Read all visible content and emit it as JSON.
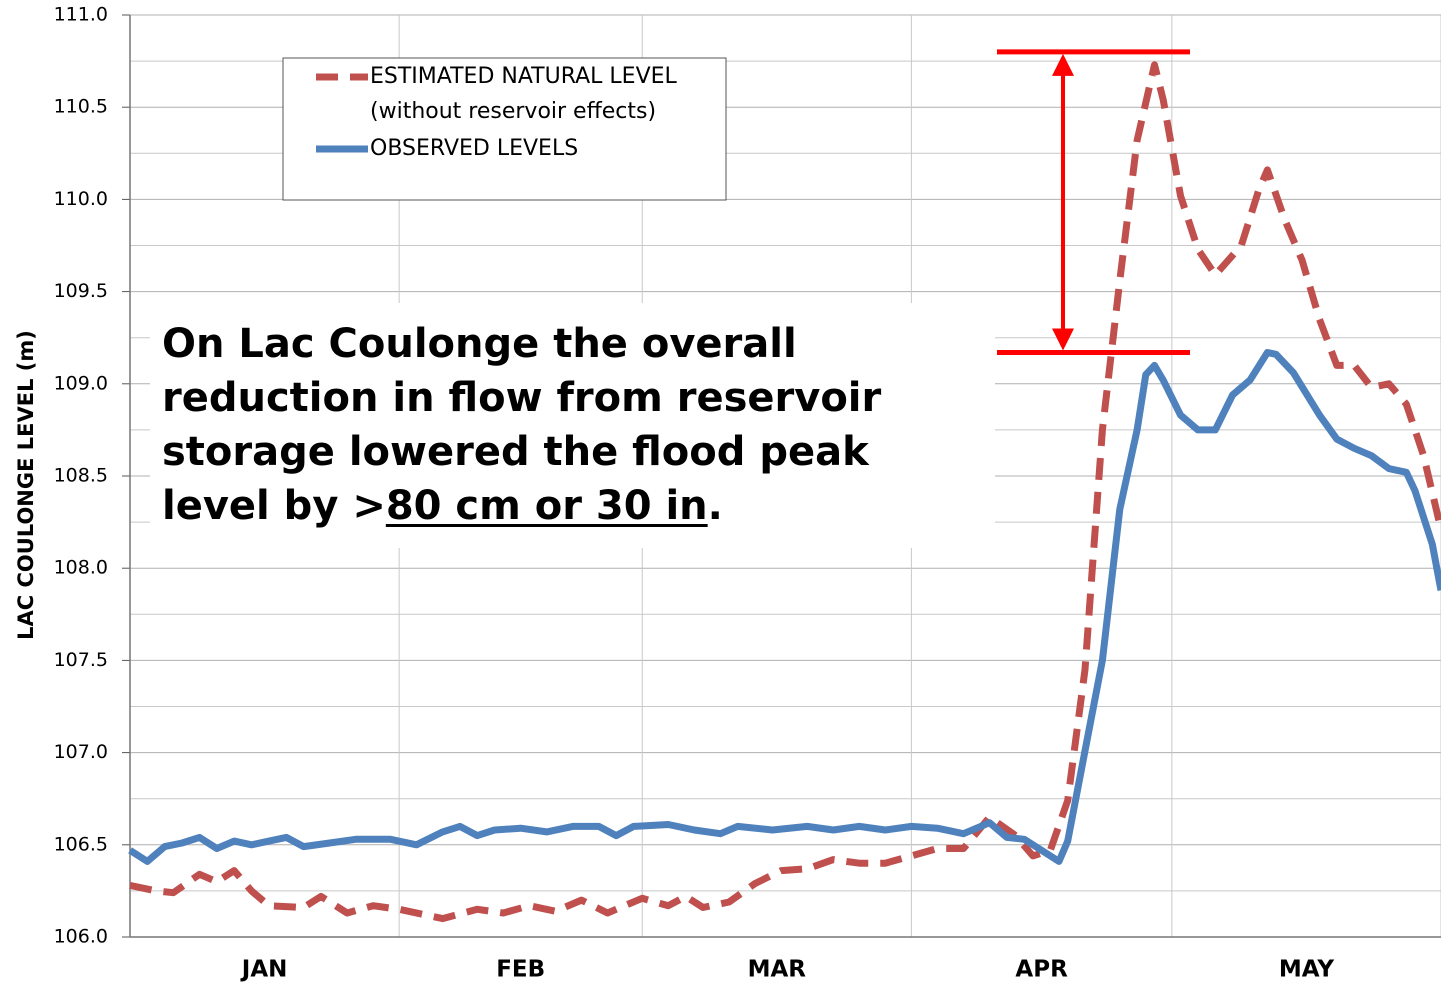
{
  "chart_data": {
    "type": "line",
    "ylabel": "LAC COULONGE LEVEL (m)",
    "ylim": [
      106,
      111
    ],
    "yticks": [
      {
        "value": 106,
        "label": "106.0"
      },
      106.5,
      {
        "value": 107,
        "label": "107.0"
      },
      107.5,
      {
        "value": 108,
        "label": "108.0"
      },
      108.5,
      {
        "value": 109,
        "label": "109.0"
      },
      109.5,
      {
        "value": 110,
        "label": "110.0"
      },
      110.5,
      {
        "value": 111,
        "label": "111.0"
      }
    ],
    "ygrid_minor": [
      106.25,
      106.75,
      107.25,
      107.75,
      108.25,
      108.75,
      109.25,
      109.75,
      110.25,
      110.75
    ],
    "xlim": [
      0,
      151
    ],
    "xgrid": [
      0,
      31,
      59,
      90,
      120,
      151
    ],
    "categories": [
      "JAN",
      "FEB",
      "MAR",
      "APR",
      "MAY"
    ],
    "grid": true,
    "series": [
      {
        "name": "ESTIMATED NATURAL LEVEL",
        "legend_note": "(without reservoir effects)",
        "color": "#c0504d",
        "dashed": true,
        "x": [
          0,
          3,
          5,
          8,
          10,
          12,
          14,
          16,
          20,
          22,
          25,
          28,
          31,
          36,
          40,
          43,
          46,
          49,
          52,
          55,
          59,
          62,
          64,
          66,
          69,
          72,
          75,
          78,
          81,
          84,
          87,
          90,
          93,
          96,
          99,
          102,
          104,
          106,
          108,
          110,
          112,
          114,
          116,
          118,
          119,
          121,
          123,
          125,
          128,
          130,
          131,
          133,
          135,
          137,
          139,
          141,
          143,
          145,
          147,
          149,
          151
        ],
        "values": [
          106.28,
          106.25,
          106.24,
          106.34,
          106.3,
          106.36,
          106.25,
          106.17,
          106.16,
          106.22,
          106.13,
          106.17,
          106.15,
          106.1,
          106.15,
          106.13,
          106.17,
          106.14,
          106.2,
          106.13,
          106.21,
          106.17,
          106.22,
          106.16,
          106.19,
          106.29,
          106.36,
          106.37,
          106.42,
          106.4,
          106.4,
          106.44,
          106.48,
          106.48,
          106.65,
          106.55,
          106.44,
          106.47,
          106.74,
          107.45,
          108.75,
          109.56,
          110.32,
          110.73,
          110.54,
          110.02,
          109.73,
          109.59,
          109.75,
          110.05,
          110.16,
          109.89,
          109.67,
          109.35,
          109.1,
          109.1,
          108.98,
          109.0,
          108.89,
          108.61,
          108.21
        ]
      },
      {
        "name": "OBSERVED LEVELS",
        "color": "#4f81bd",
        "dashed": false,
        "x": [
          0,
          2,
          4,
          6,
          8,
          10,
          12,
          14,
          16,
          18,
          20,
          23,
          26,
          30,
          33,
          36,
          38,
          40,
          42,
          45,
          48,
          51,
          54,
          56,
          58,
          62,
          65,
          68,
          70,
          74,
          78,
          81,
          84,
          87,
          90,
          93,
          96,
          99,
          101,
          103,
          105,
          107,
          108,
          110,
          112,
          114,
          116,
          117,
          118,
          119,
          121,
          123,
          125,
          127,
          129,
          131,
          132,
          134,
          137,
          139,
          141,
          143,
          145,
          147,
          148,
          150,
          151
        ],
        "values": [
          106.47,
          106.41,
          106.49,
          106.51,
          106.54,
          106.48,
          106.52,
          106.5,
          106.52,
          106.54,
          106.49,
          106.51,
          106.53,
          106.53,
          106.5,
          106.57,
          106.6,
          106.55,
          106.58,
          106.59,
          106.57,
          106.6,
          106.6,
          106.55,
          106.6,
          106.61,
          106.58,
          106.56,
          106.6,
          106.58,
          106.6,
          106.58,
          106.6,
          106.58,
          106.6,
          106.59,
          106.56,
          106.62,
          106.54,
          106.53,
          106.47,
          106.41,
          106.52,
          107.01,
          107.5,
          108.32,
          108.75,
          109.05,
          109.1,
          109.02,
          108.83,
          108.75,
          108.75,
          108.94,
          109.02,
          109.17,
          109.16,
          109.06,
          108.83,
          108.7,
          108.65,
          108.61,
          108.54,
          108.52,
          108.42,
          108.13,
          107.88
        ]
      }
    ],
    "peak_marks": [
      110.8,
      109.17
    ],
    "annotation": {
      "lines": [
        "On Lac Coulonge the overall",
        "reduction in flow from reservoir",
        "storage lowered the flood peak",
        "level by >"
      ],
      "emphasis": "80 cm or 30 in",
      "end": "."
    }
  }
}
